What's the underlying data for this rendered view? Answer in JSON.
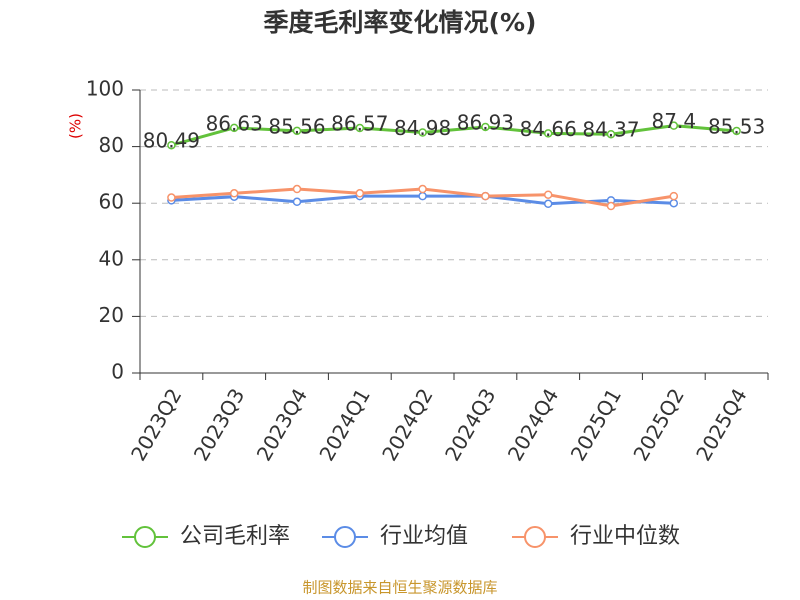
{
  "chart_data": {
    "type": "line",
    "title": "季度毛利率变化情况(%)",
    "y_label": "(%)",
    "categories": [
      "2023Q2",
      "2023Q3",
      "2023Q4",
      "2024Q1",
      "2024Q2",
      "2024Q3",
      "2024Q4",
      "2025Q1",
      "2025Q2",
      "2025Q4"
    ],
    "series": [
      {
        "name": "公司毛利率",
        "color": "#62c23b",
        "values": [
          80.49,
          86.63,
          85.56,
          86.57,
          84.98,
          86.93,
          84.66,
          84.37,
          87.4,
          85.53
        ],
        "show_labels": true
      },
      {
        "name": "行业均值",
        "color": "#5b8ce6",
        "values": [
          61,
          62.3,
          60.5,
          62.5,
          62.5,
          62.5,
          59.8,
          61,
          60,
          null
        ]
      },
      {
        "name": "行业中位数",
        "color": "#f7936a",
        "values": [
          62,
          63.5,
          65,
          63.5,
          65,
          62.5,
          63,
          59,
          62.5,
          null
        ]
      }
    ],
    "ylim": [
      0,
      100
    ],
    "yticks": [
      0,
      20,
      40,
      60,
      80,
      100
    ],
    "grid": true,
    "source": "制图数据来自恒生聚源数据库"
  }
}
